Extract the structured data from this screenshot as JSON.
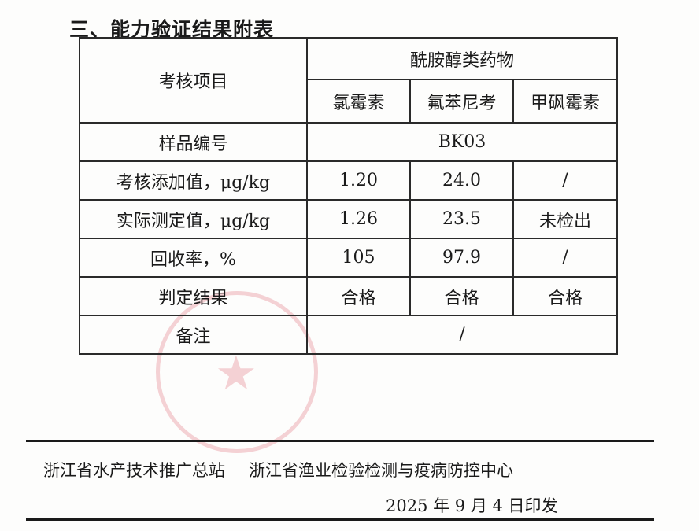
{
  "heading": "三、能力验证结果附表",
  "table": {
    "item_header": "考核项目",
    "group_header": "酰胺醇类药物",
    "drugs": [
      "氯霉素",
      "氟苯尼考",
      "甲砜霉素"
    ],
    "sample_row": {
      "label": "样品编号",
      "value": "BK03"
    },
    "rows": [
      {
        "label": "考核添加值，μg/kg",
        "values": [
          "1.20",
          "24.0",
          "/"
        ]
      },
      {
        "label": "实际测定值，μg/kg",
        "values": [
          "1.26",
          "23.5",
          "未检出"
        ]
      },
      {
        "label": "回收率，%",
        "values": [
          "105",
          "97.9",
          "/"
        ]
      },
      {
        "label": "判定结果",
        "values": [
          "合格",
          "合格",
          "合格"
        ]
      }
    ],
    "remark_row": {
      "label": "备注",
      "value": "/"
    }
  },
  "footer": {
    "orgs": [
      "浙江省水产技术推广总站",
      "浙江省渔业检验检测与疫病防控中心"
    ],
    "date": "2025 年 9 月 4 日印发"
  },
  "stamp_color": "#dc505a"
}
